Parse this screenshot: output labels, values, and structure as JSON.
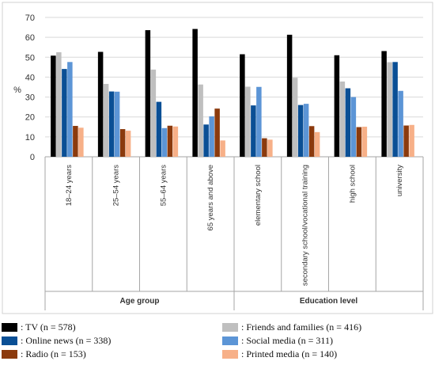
{
  "chart_data": {
    "type": "bar",
    "title": "",
    "ylabel": "%",
    "ylim": [
      0,
      70
    ],
    "yticks": [
      0,
      10,
      20,
      30,
      40,
      50,
      60,
      70
    ],
    "grid": true,
    "legend_position": "bottom",
    "categories": [
      "18–24 years",
      "25–54 years",
      "55–64 years",
      "65 years and above",
      "elementary school",
      "secondary school/vocational training",
      "high school",
      "university"
    ],
    "groups": [
      {
        "label": "Age group",
        "categories": [
          "18–24 years",
          "25–54 years",
          "55–64 years",
          "65 years and above"
        ]
      },
      {
        "label": "Education level",
        "categories": [
          "elementary school",
          "secondary school/vocational training",
          "high school",
          "university"
        ]
      }
    ],
    "series": [
      {
        "name": ": TV (n = 578)",
        "color": "#000000",
        "values": [
          50.8,
          52.7,
          63.6,
          64.2,
          51.5,
          61.3,
          51,
          53.1
        ]
      },
      {
        "name": ": Friends and families (n = 416)",
        "color": "#bfbfbf",
        "values": [
          52.5,
          36.6,
          43.8,
          36.3,
          35.2,
          39.7,
          37.8,
          47.5
        ]
      },
      {
        "name": ": Online news (n = 338)",
        "color": "#0a4f95",
        "values": [
          44.1,
          32.8,
          27.6,
          16.2,
          25.8,
          26,
          34.4,
          47.6
        ]
      },
      {
        "name": ": Social media (n = 311)",
        "color": "#5c95d6",
        "values": [
          47.6,
          32.7,
          14.4,
          20.3,
          35.1,
          26.6,
          30,
          33.1
        ]
      },
      {
        "name": ": Radio (n = 153)",
        "color": "#8b3a0d",
        "values": [
          15.5,
          13.9,
          15.6,
          24.2,
          9.3,
          15.4,
          14.9,
          15.7
        ]
      },
      {
        "name": ": Printed media (n = 140)",
        "color": "#f7b088",
        "values": [
          14.6,
          13.1,
          15.2,
          8.2,
          8.6,
          12.4,
          15.1,
          16
        ]
      }
    ]
  },
  "legend_order": [
    0,
    1,
    2,
    3,
    4,
    5
  ]
}
